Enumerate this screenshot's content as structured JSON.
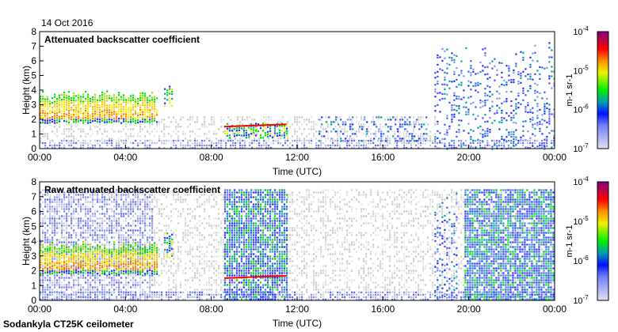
{
  "header": {
    "date": "14 Oct 2016"
  },
  "footer": {
    "instrument": "Sodankyla CT25K ceilometer"
  },
  "colors": {
    "low": "#d8d8e8",
    "blue": "#2030ff",
    "cyan": "#00a0a0",
    "green": "#00e000",
    "yellow": "#f0f000",
    "orange": "#ff8000",
    "red": "#ff0000",
    "purple": "#800080",
    "grey": "#d4d4d4"
  },
  "chart_data": [
    {
      "type": "heatmap",
      "title": "Attenuated backscatter coefficient",
      "xlabel": "Time (UTC)",
      "ylabel": "Height (km)",
      "xlim": [
        0,
        24
      ],
      "ylim": [
        0,
        8
      ],
      "xticks": [
        "00:00",
        "04:00",
        "08:00",
        "12:00",
        "16:00",
        "20:00",
        "00:00"
      ],
      "yticks": [
        "0",
        "1",
        "2",
        "3",
        "4",
        "5",
        "6",
        "7",
        "8"
      ],
      "colorbar": {
        "label": "m-1 sr-1",
        "ticks": [
          "10-7",
          "10-6",
          "10-5",
          "10-4"
        ],
        "scale": "log",
        "range": [
          1e-07,
          0.0001
        ]
      },
      "features": [
        {
          "name": "boundary-layer",
          "t": [
            0,
            24
          ],
          "h": [
            0,
            0.6
          ],
          "level": "blue-light"
        },
        {
          "name": "noise",
          "t": [
            0,
            18.4
          ],
          "h": [
            0.3,
            2.2
          ],
          "level": "grey"
        },
        {
          "name": "cloud",
          "t": [
            0,
            5.5
          ],
          "h": [
            1.8,
            4.0
          ],
          "level": "yellow-orange"
        },
        {
          "name": "cloud",
          "t": [
            5.8,
            6.2
          ],
          "h": [
            2.9,
            4.6
          ],
          "level": "green"
        },
        {
          "name": "cloud",
          "t": [
            8.6,
            11.5
          ],
          "h": [
            0.8,
            1.8
          ],
          "level": "green",
          "base_km": 1.5
        },
        {
          "name": "sparse",
          "t": [
            13,
            18
          ],
          "h": [
            0.5,
            2.2
          ],
          "level": "blue"
        },
        {
          "name": "precipitation",
          "t": [
            18.4,
            24
          ],
          "h": [
            0,
            7.3
          ],
          "level": "blue"
        }
      ]
    },
    {
      "type": "heatmap",
      "title": "Raw attenuated backscatter coefficient",
      "xlabel": "Time (UTC)",
      "ylabel": "Height (km)",
      "xlim": [
        0,
        24
      ],
      "ylim": [
        0,
        8
      ],
      "xticks": [
        "00:00",
        "04:00",
        "08:00",
        "12:00",
        "16:00",
        "20:00",
        "00:00"
      ],
      "yticks": [
        "0",
        "1",
        "2",
        "3",
        "4",
        "5",
        "6",
        "7",
        "8"
      ],
      "colorbar": {
        "label": "m-1 sr-1",
        "ticks": [
          "10-7",
          "10-6",
          "10-5",
          "10-4"
        ],
        "scale": "log",
        "range": [
          1e-07,
          0.0001
        ]
      },
      "features": [
        {
          "name": "noise",
          "t": [
            0,
            24
          ],
          "h": [
            0,
            7.5
          ],
          "level": "grey"
        },
        {
          "name": "noise",
          "t": [
            0,
            5.3
          ],
          "h": [
            0,
            7.5
          ],
          "level": "blue-light"
        },
        {
          "name": "boundary-layer",
          "t": [
            0,
            24
          ],
          "h": [
            0,
            0.6
          ],
          "level": "blue-light"
        },
        {
          "name": "cloud",
          "t": [
            0,
            5.5
          ],
          "h": [
            1.8,
            4.0
          ],
          "level": "yellow-orange"
        },
        {
          "name": "cloud",
          "t": [
            5.8,
            6.2
          ],
          "h": [
            2.9,
            4.6
          ],
          "level": "green"
        },
        {
          "name": "noise",
          "t": [
            8.6,
            11.5
          ],
          "h": [
            0,
            7.5
          ],
          "level": "blue-dense",
          "base_km": 1.5
        },
        {
          "name": "precipitation",
          "t": [
            18.4,
            19.5
          ],
          "h": [
            0,
            7.5
          ],
          "level": "blue"
        },
        {
          "name": "noise",
          "t": [
            19.8,
            24
          ],
          "h": [
            0,
            7.5
          ],
          "level": "blue-dense"
        }
      ]
    }
  ]
}
